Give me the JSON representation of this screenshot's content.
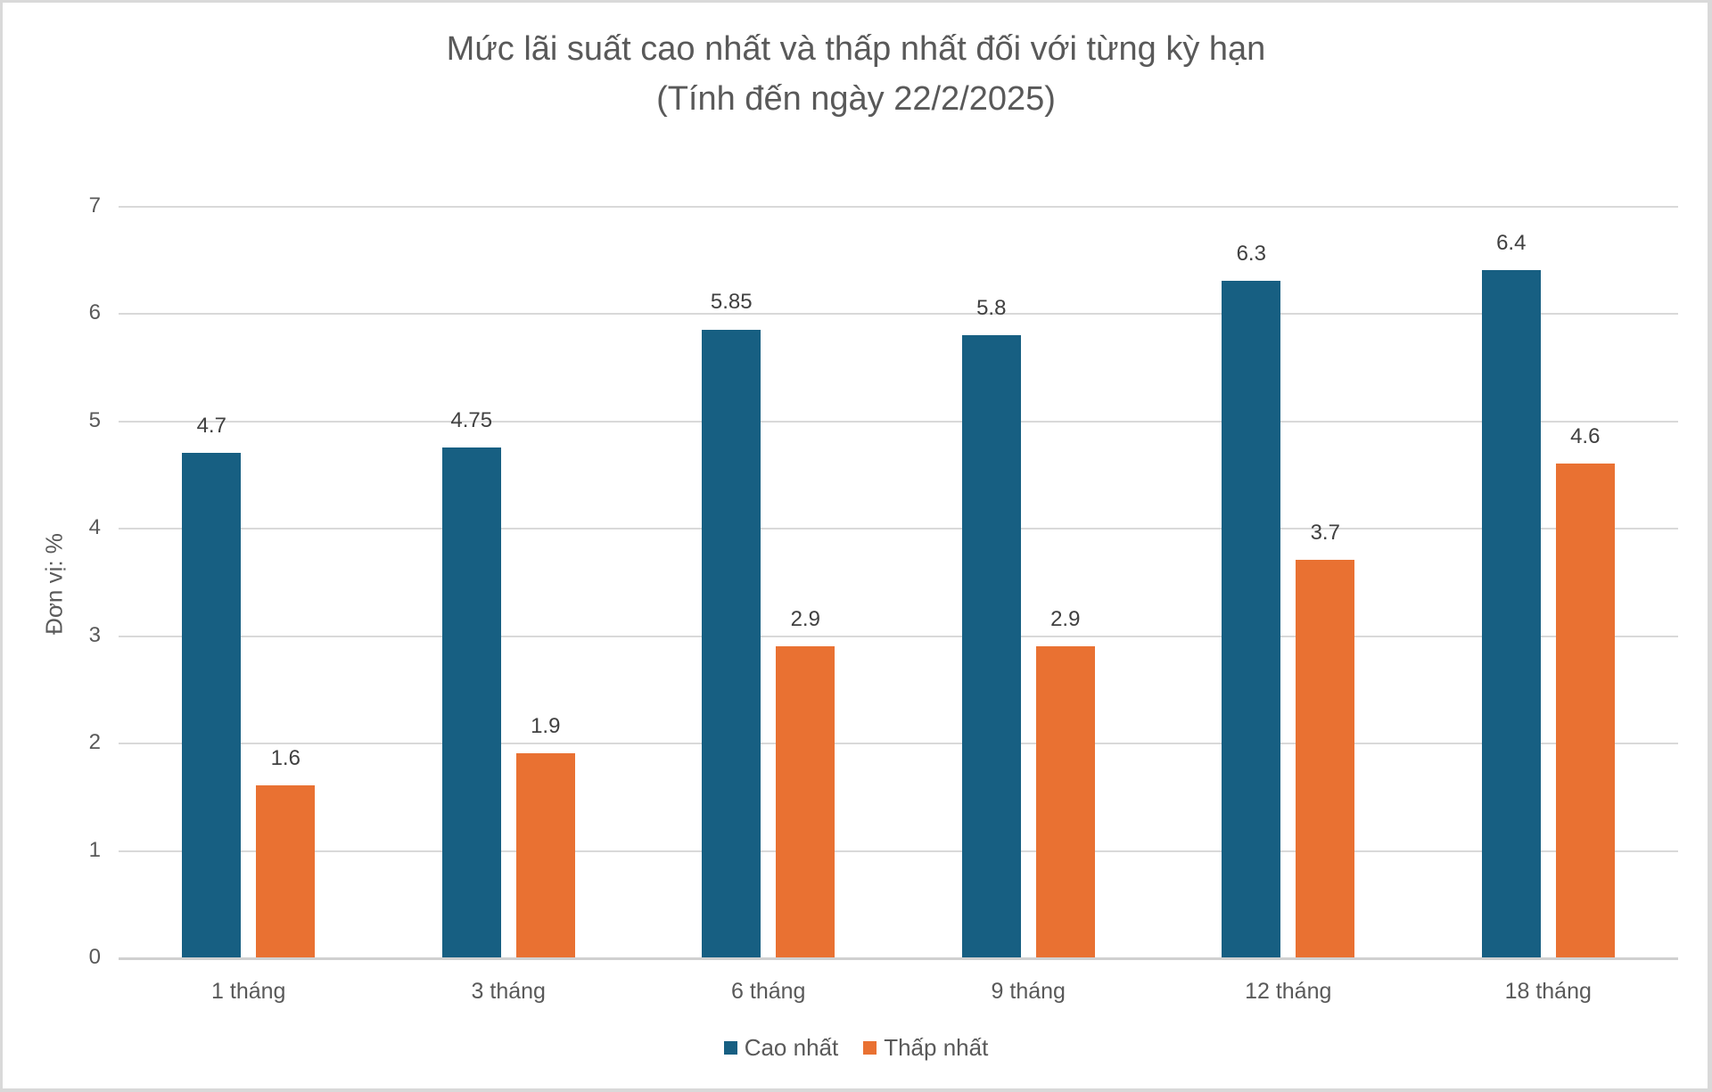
{
  "chart_data": {
    "type": "bar",
    "title": "Mức lãi suất cao nhất và thấp nhất đối với từng kỳ hạn",
    "subtitle": "(Tính đến ngày 22/2/2025)",
    "xlabel": "",
    "ylabel": "Đơn vị: %",
    "ylim": [
      0,
      7
    ],
    "yticks": [
      "0",
      "1",
      "2",
      "3",
      "4",
      "5",
      "6",
      "7"
    ],
    "grid": true,
    "legend_position": "bottom",
    "categories": [
      "1 tháng",
      "3 tháng",
      "6 tháng",
      "9 tháng",
      "12 tháng",
      "18 tháng"
    ],
    "series": [
      {
        "name": "Cao nhất",
        "color": "#175f82",
        "values": [
          4.7,
          4.75,
          5.85,
          5.8,
          6.3,
          6.4
        ],
        "labels": [
          "4.7",
          "4.75",
          "5.85",
          "5.8",
          "6.3",
          "6.4"
        ]
      },
      {
        "name": "Thấp nhất",
        "color": "#e97132",
        "values": [
          1.6,
          1.9,
          2.9,
          2.9,
          3.7,
          4.6
        ],
        "labels": [
          "1.6",
          "1.9",
          "2.9",
          "2.9",
          "3.7",
          "4.6"
        ]
      }
    ]
  }
}
